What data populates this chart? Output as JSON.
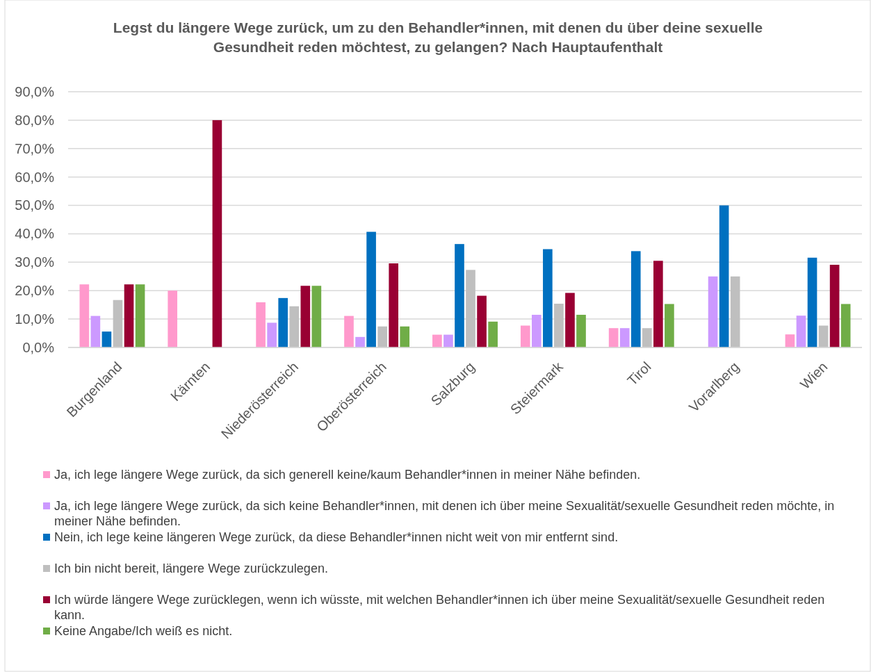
{
  "chart_data": {
    "type": "bar",
    "title": "Legst du längere Wege zurück, um zu den Behandler*innen, mit denen du über deine sexuelle Gesundheit reden möchtest, zu gelangen? Nach Hauptaufenthalt",
    "categories": [
      "Burgenland",
      "Kärnten",
      "Niederösterreich",
      "Oberösterreich",
      "Salzburg",
      "Steiermark",
      "Tirol",
      "Vorarlberg",
      "Wien"
    ],
    "series": [
      {
        "name": "Ja, ich lege längere Wege zurück, da sich generell keine/kaum Behandler*innen in meiner Nähe befinden.",
        "color": "#ff99cc",
        "values": [
          22.2,
          20.0,
          15.9,
          11.1,
          4.5,
          7.7,
          6.8,
          0,
          4.6
        ]
      },
      {
        "name": "Ja, ich lege längere Wege zurück, da sich keine Behandler*innen, mit denen ich über meine Sexualität/sexuelle Gesundheit reden möchte, in meiner Nähe befinden.",
        "color": "#cc99ff",
        "values": [
          11.1,
          0,
          8.7,
          3.7,
          4.5,
          11.5,
          6.8,
          25.0,
          11.2
        ]
      },
      {
        "name": "Nein, ich lege keine längeren Wege zurück, da diese Behandler*innen nicht weit von mir entfernt sind.",
        "color": "#0070c0",
        "values": [
          5.6,
          0,
          17.4,
          40.7,
          36.4,
          34.6,
          33.9,
          50.0,
          31.6
        ]
      },
      {
        "name": "Ich bin nicht bereit, längere Wege zurückzulegen.",
        "color": "#bfbfbf",
        "values": [
          16.7,
          0,
          14.5,
          7.4,
          27.3,
          15.4,
          6.8,
          25.0,
          7.7
        ]
      },
      {
        "name": "Ich würde längere Wege zurücklegen, wenn ich wüsste, mit welchen Behandler*innen ich über meine Sexualität/sexuelle Gesundheit reden kann.",
        "color": "#990033",
        "values": [
          22.2,
          80.0,
          21.7,
          29.6,
          18.2,
          19.2,
          30.5,
          0,
          29.1
        ]
      },
      {
        "name": "Keine Angabe/Ich weiß es nicht.",
        "color": "#70ad47",
        "values": [
          22.2,
          0,
          21.7,
          7.4,
          9.1,
          11.5,
          15.3,
          0,
          15.3
        ]
      }
    ],
    "ylim": [
      0,
      90
    ],
    "yticks": [
      {
        "value": 0,
        "label": "0,0%"
      },
      {
        "value": 10,
        "label": "10,0%"
      },
      {
        "value": 20,
        "label": "20,0%"
      },
      {
        "value": 30,
        "label": "30,0%"
      },
      {
        "value": 40,
        "label": "40,0%"
      },
      {
        "value": 50,
        "label": "50,0%"
      },
      {
        "value": 60,
        "label": "60,0%"
      },
      {
        "value": 70,
        "label": "70,0%"
      },
      {
        "value": 80,
        "label": "80,0%"
      },
      {
        "value": 90,
        "label": "90,0%"
      }
    ],
    "grid": "y",
    "legend": "bottom"
  }
}
